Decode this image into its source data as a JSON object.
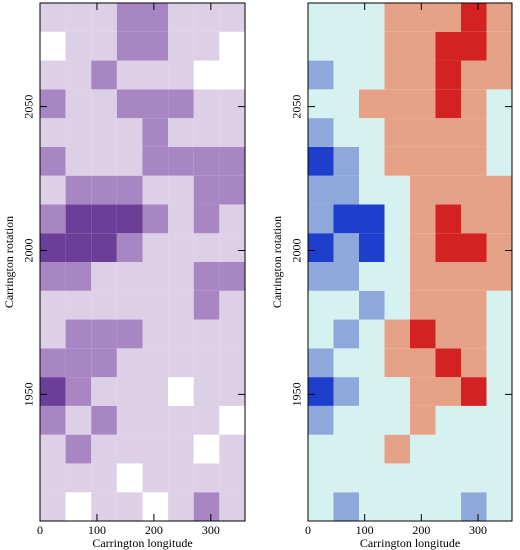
{
  "chart_data": [
    {
      "type": "heatmap",
      "xlabel": "Carrington longitude",
      "ylabel": "Carrington rotation",
      "xlim": [
        0,
        360
      ],
      "ylim": [
        1906,
        2086
      ],
      "xticks": [
        0,
        100,
        200,
        300
      ],
      "yticks": [
        1950,
        2000,
        2050
      ],
      "xbins": [
        0,
        45,
        90,
        135,
        180,
        225,
        270,
        315,
        360
      ],
      "ybins": [
        1906,
        1916,
        1926,
        1936,
        1946,
        1956,
        1966,
        1976,
        1986,
        1996,
        2006,
        2016,
        2026,
        2036,
        2046,
        2056,
        2066,
        2076,
        2086
      ],
      "vlim": [
        0,
        3
      ],
      "colors": [
        "#ffffff",
        "#dccfe6",
        "#a886c4",
        "#6b3f98"
      ],
      "values": [
        [
          1,
          0,
          1,
          1,
          0,
          1,
          2,
          1
        ],
        [
          1,
          1,
          1,
          0,
          1,
          1,
          1,
          1
        ],
        [
          1,
          2,
          1,
          1,
          1,
          1,
          0,
          1
        ],
        [
          2,
          1,
          2,
          1,
          1,
          1,
          1,
          0
        ],
        [
          3,
          2,
          1,
          1,
          1,
          0,
          1,
          1
        ],
        [
          2,
          2,
          2,
          1,
          1,
          1,
          1,
          1
        ],
        [
          1,
          2,
          2,
          2,
          1,
          1,
          1,
          1
        ],
        [
          1,
          1,
          1,
          1,
          1,
          1,
          2,
          1
        ],
        [
          2,
          2,
          1,
          1,
          1,
          1,
          2,
          2
        ],
        [
          3,
          3,
          3,
          2,
          1,
          1,
          1,
          1
        ],
        [
          2,
          3,
          3,
          3,
          2,
          1,
          2,
          1
        ],
        [
          1,
          2,
          2,
          2,
          1,
          1,
          2,
          2
        ],
        [
          2,
          1,
          1,
          1,
          2,
          2,
          2,
          2
        ],
        [
          1,
          1,
          1,
          1,
          2,
          1,
          1,
          1
        ],
        [
          2,
          1,
          1,
          2,
          2,
          2,
          1,
          1
        ],
        [
          1,
          1,
          2,
          1,
          1,
          1,
          0,
          0
        ],
        [
          0,
          1,
          1,
          2,
          2,
          1,
          1,
          0
        ],
        [
          1,
          1,
          1,
          2,
          2,
          1,
          1,
          1
        ]
      ]
    },
    {
      "type": "heatmap",
      "xlabel": "Carrington longitude",
      "ylabel": "Carrington rotation",
      "xlim": [
        0,
        360
      ],
      "ylim": [
        1906,
        2086
      ],
      "xticks": [
        0,
        100,
        200,
        300
      ],
      "yticks": [
        1950,
        2000,
        2050
      ],
      "xbins": [
        0,
        45,
        90,
        135,
        180,
        225,
        270,
        315,
        360
      ],
      "ybins": [
        1906,
        1916,
        1926,
        1936,
        1946,
        1956,
        1966,
        1976,
        1986,
        1996,
        2006,
        2016,
        2026,
        2036,
        2046,
        2056,
        2066,
        2076,
        2086
      ],
      "vlim": [
        -2,
        2
      ],
      "colors": [
        "#1d3fcc",
        "#8ea8dc",
        "#d6f2f0",
        "#e6a286",
        "#d42222"
      ],
      "values": [
        [
          0,
          -1,
          0,
          0,
          0,
          0,
          -1,
          0
        ],
        [
          0,
          0,
          0,
          0,
          0,
          0,
          0,
          0
        ],
        [
          0,
          0,
          0,
          1,
          0,
          0,
          0,
          0
        ],
        [
          -1,
          0,
          0,
          0,
          1,
          0,
          0,
          0
        ],
        [
          -2,
          -1,
          0,
          0,
          1,
          1,
          2,
          0
        ],
        [
          -1,
          0,
          0,
          1,
          1,
          2,
          1,
          0
        ],
        [
          0,
          -1,
          0,
          1,
          2,
          1,
          1,
          0
        ],
        [
          0,
          0,
          -1,
          0,
          1,
          1,
          1,
          0
        ],
        [
          -1,
          -1,
          0,
          0,
          1,
          1,
          1,
          1
        ],
        [
          -2,
          -1,
          -2,
          0,
          1,
          2,
          2,
          1
        ],
        [
          -1,
          -2,
          -2,
          0,
          1,
          2,
          1,
          1
        ],
        [
          -1,
          -1,
          0,
          0,
          1,
          1,
          1,
          1
        ],
        [
          -2,
          -1,
          0,
          1,
          1,
          1,
          1,
          0
        ],
        [
          -1,
          0,
          0,
          1,
          1,
          1,
          1,
          0
        ],
        [
          0,
          0,
          1,
          1,
          1,
          2,
          1,
          0
        ],
        [
          -1,
          0,
          0,
          1,
          1,
          2,
          1,
          1
        ],
        [
          0,
          0,
          0,
          1,
          1,
          2,
          2,
          1
        ],
        [
          0,
          0,
          0,
          1,
          1,
          1,
          2,
          1
        ]
      ]
    }
  ]
}
